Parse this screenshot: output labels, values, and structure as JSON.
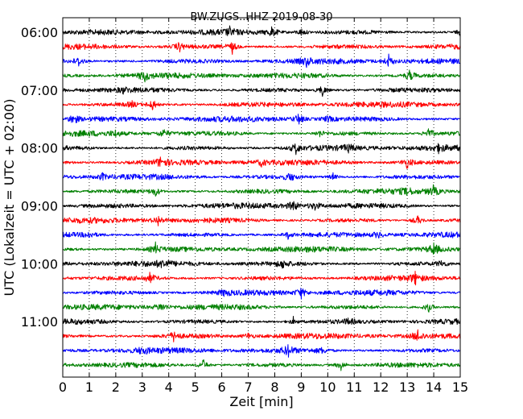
{
  "chart_data": {
    "type": "line",
    "title": "BW.ZUGS..HHZ 2019-08-30",
    "xlabel": "Zeit  [min]",
    "ylabel": "UTC (Lokalzeit = UTC + 02:00)",
    "xlim": [
      0,
      15
    ],
    "x_ticks": [
      "0",
      "1",
      "2",
      "3",
      "4",
      "5",
      "6",
      "7",
      "8",
      "9",
      "10",
      "11",
      "12",
      "13",
      "14",
      "15"
    ],
    "y_tick_labels": [
      "06:00",
      "07:00",
      "08:00",
      "09:00",
      "10:00",
      "11:00"
    ],
    "grid": "vertical dotted",
    "series_colors": [
      "#000000",
      "#ff0000",
      "#0000ff",
      "#008000"
    ],
    "trace_interval_min": 15,
    "trace_start_times": [
      "06:00",
      "06:15",
      "06:30",
      "06:45",
      "07:00",
      "07:15",
      "07:30",
      "07:45",
      "08:00",
      "08:15",
      "08:30",
      "08:45",
      "09:00",
      "09:15",
      "09:30",
      "09:45",
      "10:00",
      "10:15",
      "10:30",
      "10:45",
      "11:00",
      "11:15",
      "11:30",
      "11:45"
    ],
    "spikes": [
      [
        [
          7.9,
          1.0
        ],
        [
          9.0,
          0.6
        ],
        [
          6.3,
          0.5
        ],
        [
          15.0,
          0.5
        ]
      ],
      [
        [
          4.4,
          0.8
        ],
        [
          6.4,
          0.9
        ]
      ],
      [
        [
          0.6,
          0.8
        ],
        [
          9.2,
          0.6
        ],
        [
          12.3,
          0.9
        ]
      ],
      [
        [
          3.1,
          0.8
        ],
        [
          13.1,
          0.9
        ]
      ],
      [
        [
          9.8,
          1.0
        ],
        [
          2.3,
          0.4
        ]
      ],
      [
        [
          3.4,
          1.0
        ],
        [
          2.6,
          0.5
        ]
      ],
      [
        [
          0.4,
          1.0
        ],
        [
          8.9,
          1.0
        ],
        [
          10.0,
          0.5
        ]
      ],
      [
        [
          3.8,
          0.8
        ],
        [
          9.7,
          0.5
        ],
        [
          13.8,
          1.0
        ],
        [
          2.0,
          0.4
        ]
      ],
      [
        [
          8.8,
          0.8
        ],
        [
          10.8,
          0.6
        ],
        [
          14.2,
          0.6
        ]
      ],
      [
        [
          3.7,
          0.9
        ],
        [
          7.5,
          0.5
        ],
        [
          13.0,
          0.9
        ]
      ],
      [
        [
          1.5,
          0.5
        ],
        [
          8.6,
          0.8
        ],
        [
          10.2,
          0.5
        ]
      ],
      [
        [
          3.5,
          0.8
        ],
        [
          13.0,
          0.5
        ],
        [
          14.0,
          0.9
        ]
      ],
      [
        [
          8.7,
          1.0
        ],
        [
          9.5,
          0.8
        ]
      ],
      [
        [
          3.6,
          0.8
        ],
        [
          13.4,
          0.9
        ]
      ],
      [
        [
          1.0,
          0.5
        ],
        [
          8.5,
          0.6
        ],
        [
          11.9,
          0.6
        ]
      ],
      [
        [
          3.5,
          0.8
        ],
        [
          14.0,
          1.0
        ]
      ],
      [
        [
          3.8,
          0.6
        ],
        [
          8.3,
          0.8
        ],
        [
          14.3,
          0.6
        ]
      ],
      [
        [
          3.3,
          0.8
        ],
        [
          13.3,
          0.8
        ]
      ],
      [
        [
          9.0,
          0.9
        ],
        [
          6.1,
          0.5
        ]
      ],
      [
        [
          3.7,
          0.8
        ],
        [
          13.8,
          0.8
        ]
      ],
      [
        [
          8.7,
          0.6
        ],
        [
          10.8,
          0.5
        ]
      ],
      [
        [
          4.2,
          0.8
        ],
        [
          7.0,
          0.5
        ],
        [
          13.4,
          0.9
        ]
      ],
      [
        [
          3.0,
          0.5
        ],
        [
          8.5,
          0.9
        ],
        [
          9.8,
          0.5
        ]
      ],
      [
        [
          5.3,
          0.9
        ],
        [
          10.5,
          0.8
        ]
      ]
    ]
  }
}
